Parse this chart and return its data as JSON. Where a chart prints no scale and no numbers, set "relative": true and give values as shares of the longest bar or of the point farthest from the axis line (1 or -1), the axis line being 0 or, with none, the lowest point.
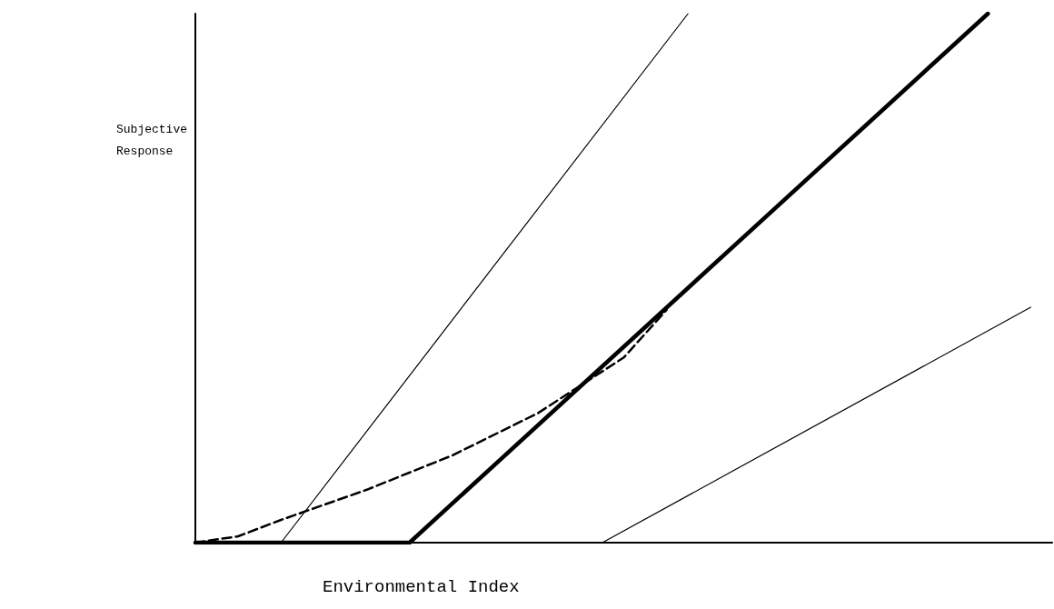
{
  "chart_data": {
    "type": "line",
    "relative": true,
    "xlabel": "Environmental Index",
    "ylabel": "Subjective\nResponse",
    "categories": [
      null,
      null,
      null,
      null,
      null,
      null,
      null,
      null,
      null,
      null,
      null,
      null,
      null,
      null,
      null,
      null,
      null,
      null,
      null,
      null,
      null,
      null,
      null,
      null,
      null,
      null,
      null,
      null,
      null,
      null,
      null,
      null,
      null,
      null,
      null,
      null,
      null,
      null,
      null,
      null,
      null
    ],
    "tick_labels": false,
    "grid": false,
    "marker": "none",
    "series": [
      {
        "color": "#000000",
        "values": [
          null,
          null,
          null,
          null,
          0,
          null,
          null,
          null,
          null,
          null,
          null,
          null,
          null,
          null,
          null,
          null,
          null,
          null,
          null,
          null,
          null,
          null,
          null,
          1,
          null,
          null,
          null,
          null,
          null,
          null,
          null,
          null,
          null,
          null,
          null,
          null,
          null,
          null,
          null,
          null,
          null
        ]
      },
      {
        "color": "#000000",
        "values": [
          0,
          null,
          null,
          null,
          null,
          null,
          null,
          null,
          null,
          null,
          0,
          null,
          null,
          null,
          null,
          null,
          null,
          null,
          null,
          null,
          null,
          null,
          null,
          null,
          null,
          null,
          null,
          null,
          null,
          null,
          null,
          null,
          null,
          null,
          null,
          null,
          null,
          1,
          null,
          null,
          null
        ]
      },
      {
        "color": "#000000",
        "values": [
          null,
          null,
          null,
          null,
          null,
          null,
          null,
          null,
          null,
          null,
          null,
          null,
          null,
          null,
          null,
          null,
          null,
          null,
          null,
          0,
          null,
          null,
          null,
          null,
          null,
          null,
          null,
          null,
          null,
          null,
          null,
          null,
          null,
          null,
          null,
          null,
          null,
          null,
          null,
          0.445,
          null
        ]
      },
      {
        "color": "#000000",
        "line_style": "dashed",
        "values": [
          0,
          null,
          0.012,
          null,
          0.043,
          null,
          null,
          null,
          0.1,
          null,
          null,
          null,
          0.165,
          null,
          null,
          null,
          0.245,
          null,
          null,
          null,
          0.35,
          null,
          0.44,
          null,
          null,
          null,
          null,
          null,
          null,
          null,
          null,
          null,
          null,
          null,
          null,
          null,
          null,
          null,
          null,
          null,
          null
        ]
      }
    ]
  }
}
